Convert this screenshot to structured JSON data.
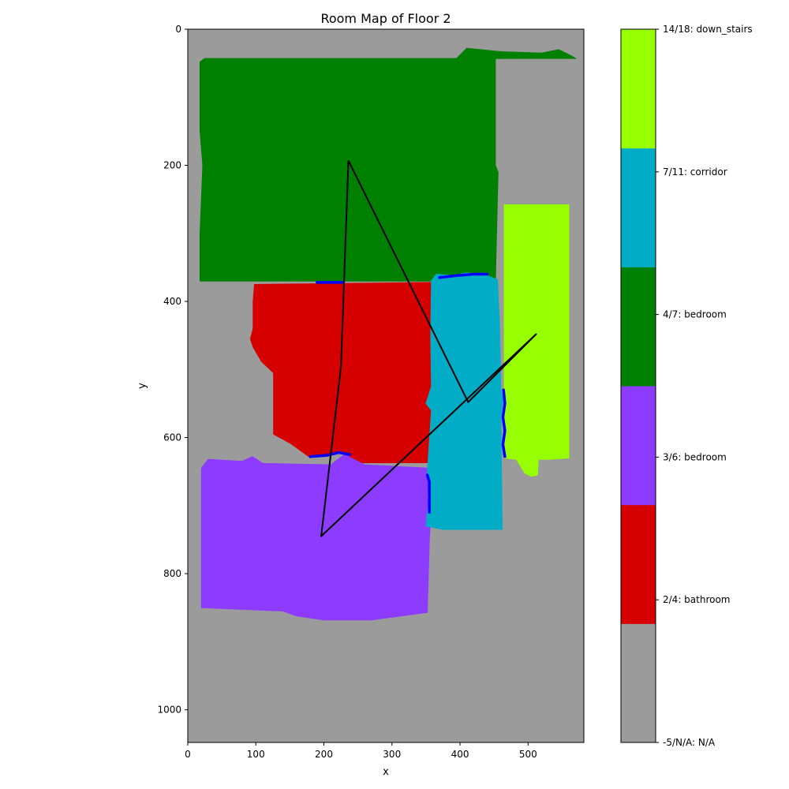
{
  "chart_data": {
    "type": "heatmap",
    "title": "Room Map of Floor 2",
    "xlabel": "x",
    "ylabel": "y",
    "xlim": [
      0,
      582
    ],
    "ylim": [
      1048,
      0
    ],
    "xticks": [
      0,
      100,
      200,
      300,
      400,
      500
    ],
    "yticks": [
      0,
      200,
      400,
      600,
      800,
      1000
    ],
    "background_color": "#9b9b9b",
    "rooms": [
      {
        "id": "4/7",
        "label": "bedroom",
        "color": "#008000",
        "polygon": [
          [
            18,
            48
          ],
          [
            25,
            43
          ],
          [
            395,
            43
          ],
          [
            410,
            28
          ],
          [
            460,
            33
          ],
          [
            520,
            35
          ],
          [
            545,
            30
          ],
          [
            565,
            40
          ],
          [
            570,
            43
          ],
          [
            452,
            43
          ],
          [
            452,
            200
          ],
          [
            456,
            210
          ],
          [
            452,
            370
          ],
          [
            18,
            370
          ],
          [
            18,
            300
          ],
          [
            22,
            200
          ],
          [
            18,
            150
          ]
        ]
      },
      {
        "id": "2/4",
        "label": "bathroom",
        "color": "#d60000",
        "polygon": [
          [
            98,
            375
          ],
          [
            358,
            372
          ],
          [
            358,
            637
          ],
          [
            255,
            637
          ],
          [
            225,
            622
          ],
          [
            200,
            628
          ],
          [
            178,
            628
          ],
          [
            150,
            608
          ],
          [
            126,
            595
          ],
          [
            126,
            505
          ],
          [
            108,
            488
          ],
          [
            96,
            467
          ],
          [
            92,
            455
          ],
          [
            96,
            440
          ],
          [
            96,
            400
          ]
        ]
      },
      {
        "id": "3/6",
        "label": "bedroom",
        "color": "#8c3bff",
        "polygon": [
          [
            20,
            645
          ],
          [
            30,
            632
          ],
          [
            80,
            635
          ],
          [
            95,
            628
          ],
          [
            110,
            638
          ],
          [
            210,
            640
          ],
          [
            230,
            625
          ],
          [
            260,
            640
          ],
          [
            355,
            645
          ],
          [
            352,
            690
          ],
          [
            358,
            700
          ],
          [
            355,
            750
          ],
          [
            352,
            857
          ],
          [
            270,
            868
          ],
          [
            200,
            868
          ],
          [
            160,
            862
          ],
          [
            140,
            855
          ],
          [
            20,
            850
          ]
        ]
      },
      {
        "id": "7/11",
        "label": "corridor",
        "color": "#00acc6",
        "polygon": [
          [
            365,
            360
          ],
          [
            390,
            362
          ],
          [
            410,
            358
          ],
          [
            440,
            362
          ],
          [
            455,
            368
          ],
          [
            458,
            430
          ],
          [
            460,
            530
          ],
          [
            463,
            545
          ],
          [
            460,
            570
          ],
          [
            462,
            735
          ],
          [
            375,
            735
          ],
          [
            350,
            730
          ],
          [
            352,
            710
          ],
          [
            358,
            680
          ],
          [
            352,
            650
          ],
          [
            358,
            560
          ],
          [
            350,
            550
          ],
          [
            358,
            525
          ],
          [
            357,
            450
          ],
          [
            358,
            370
          ]
        ]
      },
      {
        "id": "14/18",
        "label": "down_stairs",
        "color": "#97ff00",
        "polygon": [
          [
            465,
            258
          ],
          [
            560,
            258
          ],
          [
            560,
            630
          ],
          [
            530,
            632
          ],
          [
            515,
            632
          ],
          [
            514,
            655
          ],
          [
            505,
            657
          ],
          [
            495,
            652
          ],
          [
            483,
            632
          ],
          [
            465,
            630
          ]
        ]
      }
    ],
    "room_edges": [
      {
        "color": "#0000ff",
        "points": [
          [
            190,
            372
          ],
          [
            228,
            372
          ]
        ]
      },
      {
        "color": "#0000ff",
        "points": [
          [
            370,
            365
          ],
          [
            395,
            362
          ],
          [
            420,
            360
          ],
          [
            440,
            360
          ]
        ]
      },
      {
        "color": "#0000ff",
        "points": [
          [
            180,
            628
          ],
          [
            205,
            626
          ],
          [
            222,
            622
          ],
          [
            238,
            625
          ]
        ]
      },
      {
        "color": "#0000ff",
        "points": [
          [
            464,
            530
          ],
          [
            466,
            550
          ],
          [
            463,
            570
          ],
          [
            466,
            590
          ],
          [
            463,
            610
          ],
          [
            466,
            628
          ]
        ]
      },
      {
        "color": "#0000ff",
        "points": [
          [
            352,
            655
          ],
          [
            355,
            665
          ],
          [
            355,
            710
          ]
        ]
      }
    ],
    "path": {
      "color": "#000000",
      "points": [
        [
          236,
          193
        ],
        [
          412,
          548
        ],
        [
          512,
          448
        ],
        [
          196,
          745
        ],
        [
          225,
          497
        ],
        [
          236,
          193
        ]
      ]
    },
    "colorbar": {
      "segments": [
        {
          "color": "#9b9b9b",
          "label": "-5/N/A: N/A"
        },
        {
          "color": "#d60000",
          "label": "2/4: bathroom"
        },
        {
          "color": "#8c3bff",
          "label": "3/6: bedroom"
        },
        {
          "color": "#008000",
          "label": "4/7: bedroom"
        },
        {
          "color": "#00acc6",
          "label": "7/11: corridor"
        },
        {
          "color": "#97ff00",
          "label": "14/18: down_stairs"
        }
      ]
    }
  }
}
